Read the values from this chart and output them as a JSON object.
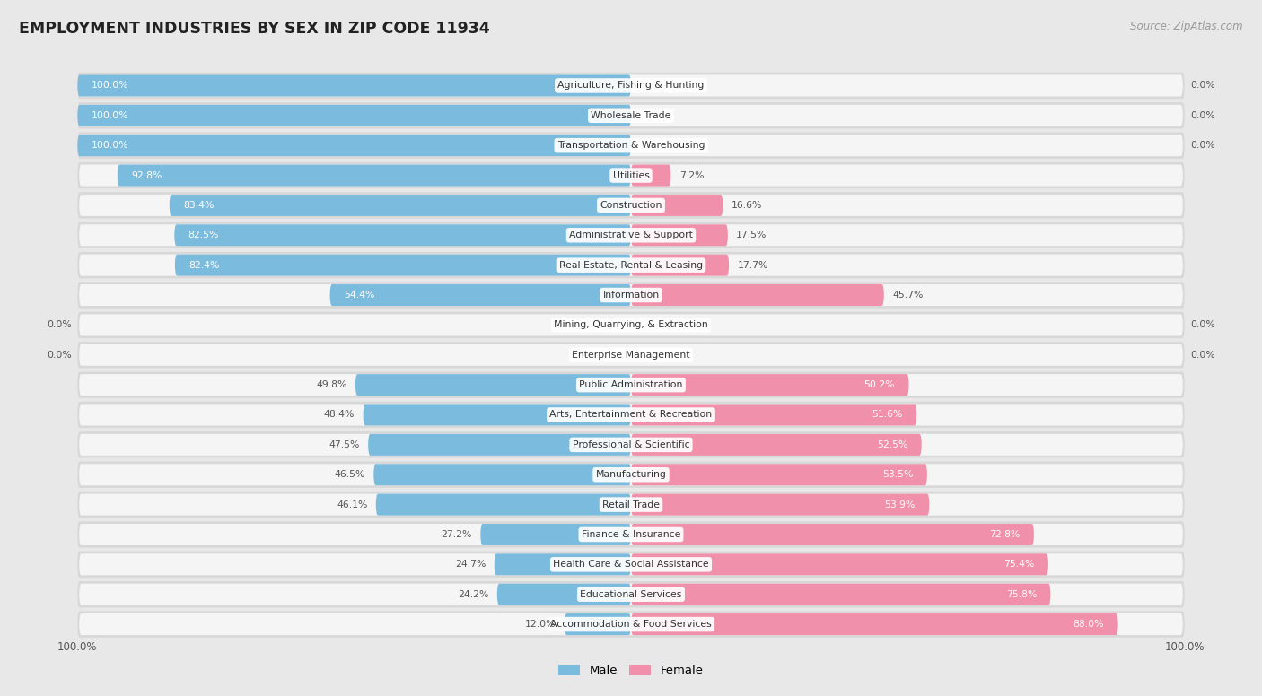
{
  "title": "EMPLOYMENT INDUSTRIES BY SEX IN ZIP CODE 11934",
  "source": "Source: ZipAtlas.com",
  "male_color": "#7BBCDE",
  "female_color": "#F090AA",
  "background_color": "#e8e8e8",
  "row_bg_color": "#d8d8d8",
  "bar_bg_color": "#f5f5f5",
  "label_color": "#555555",
  "industries": [
    {
      "name": "Agriculture, Fishing & Hunting",
      "male": 100.0,
      "female": 0.0
    },
    {
      "name": "Wholesale Trade",
      "male": 100.0,
      "female": 0.0
    },
    {
      "name": "Transportation & Warehousing",
      "male": 100.0,
      "female": 0.0
    },
    {
      "name": "Utilities",
      "male": 92.8,
      "female": 7.2
    },
    {
      "name": "Construction",
      "male": 83.4,
      "female": 16.6
    },
    {
      "name": "Administrative & Support",
      "male": 82.5,
      "female": 17.5
    },
    {
      "name": "Real Estate, Rental & Leasing",
      "male": 82.4,
      "female": 17.7
    },
    {
      "name": "Information",
      "male": 54.4,
      "female": 45.7
    },
    {
      "name": "Mining, Quarrying, & Extraction",
      "male": 0.0,
      "female": 0.0
    },
    {
      "name": "Enterprise Management",
      "male": 0.0,
      "female": 0.0
    },
    {
      "name": "Public Administration",
      "male": 49.8,
      "female": 50.2
    },
    {
      "name": "Arts, Entertainment & Recreation",
      "male": 48.4,
      "female": 51.6
    },
    {
      "name": "Professional & Scientific",
      "male": 47.5,
      "female": 52.5
    },
    {
      "name": "Manufacturing",
      "male": 46.5,
      "female": 53.5
    },
    {
      "name": "Retail Trade",
      "male": 46.1,
      "female": 53.9
    },
    {
      "name": "Finance & Insurance",
      "male": 27.2,
      "female": 72.8
    },
    {
      "name": "Health Care & Social Assistance",
      "male": 24.7,
      "female": 75.4
    },
    {
      "name": "Educational Services",
      "male": 24.2,
      "female": 75.8
    },
    {
      "name": "Accommodation & Food Services",
      "male": 12.0,
      "female": 88.0
    }
  ]
}
